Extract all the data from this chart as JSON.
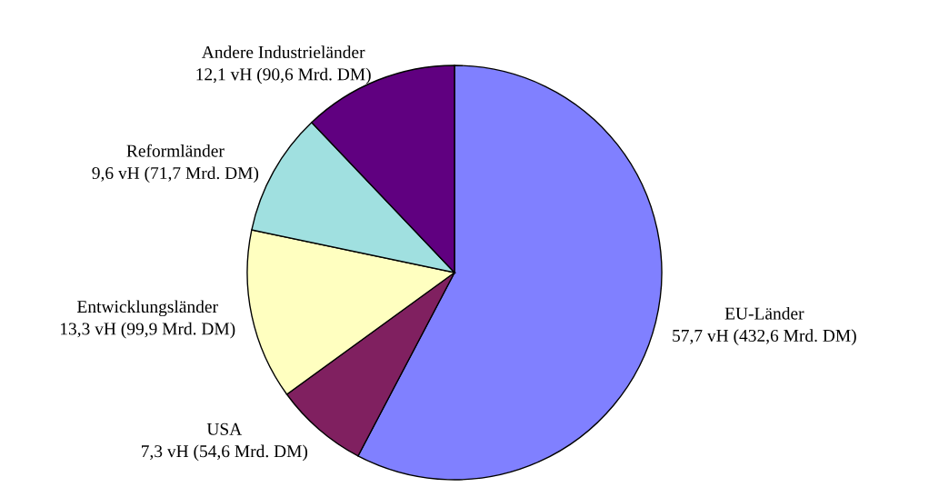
{
  "chart_data": {
    "type": "pie",
    "categories": [
      "EU-Länder",
      "USA",
      "Entwicklungsländer",
      "Reformländer",
      "Andere Industrieländer"
    ],
    "values": [
      57.7,
      7.3,
      13.3,
      9.6,
      12.1
    ],
    "value_labels": [
      "57,7 vH (432,6 Mrd. DM)",
      "7,3 vH (54,6 Mrd. DM)",
      "13,3 vH (99,9 Mrd. DM)",
      "9,6 vH (71,7 Mrd. DM)",
      "12,1 vH (90,6 Mrd. DM)"
    ],
    "colors": [
      "#8080ff",
      "#802060",
      "#ffffc0",
      "#a0e0e0",
      "#600080"
    ],
    "legend": false
  }
}
